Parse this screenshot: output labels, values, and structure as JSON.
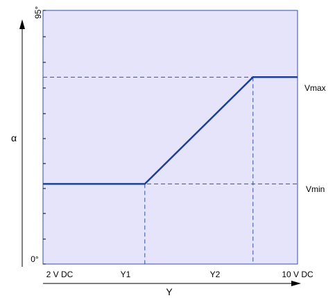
{
  "colors": {
    "plot_background": "#e6e4fb",
    "curve": "#1f3f94",
    "dashed": "#2f4f9f",
    "axis": "#000000"
  },
  "chart_data": {
    "type": "line",
    "x_axis_title": "Y",
    "y_axis_title": "α",
    "x_tick_labels": [
      "2 V DC",
      "Y1",
      "Y2",
      "10 V DC"
    ],
    "y_tick_labels": [
      "0°",
      "95°"
    ],
    "level_labels": [
      "Vmax",
      "Vmin"
    ],
    "x_domain": [
      2,
      10
    ],
    "y_domain": [
      0,
      95
    ],
    "series": [
      {
        "points": [
          [
            2,
            30
          ],
          [
            5.2,
            30
          ],
          [
            8.6,
            70
          ],
          [
            10,
            70
          ]
        ]
      }
    ],
    "y1_x": 5.2,
    "y2_x": 8.6,
    "vmin_y": 30,
    "vmax_y": 70
  }
}
